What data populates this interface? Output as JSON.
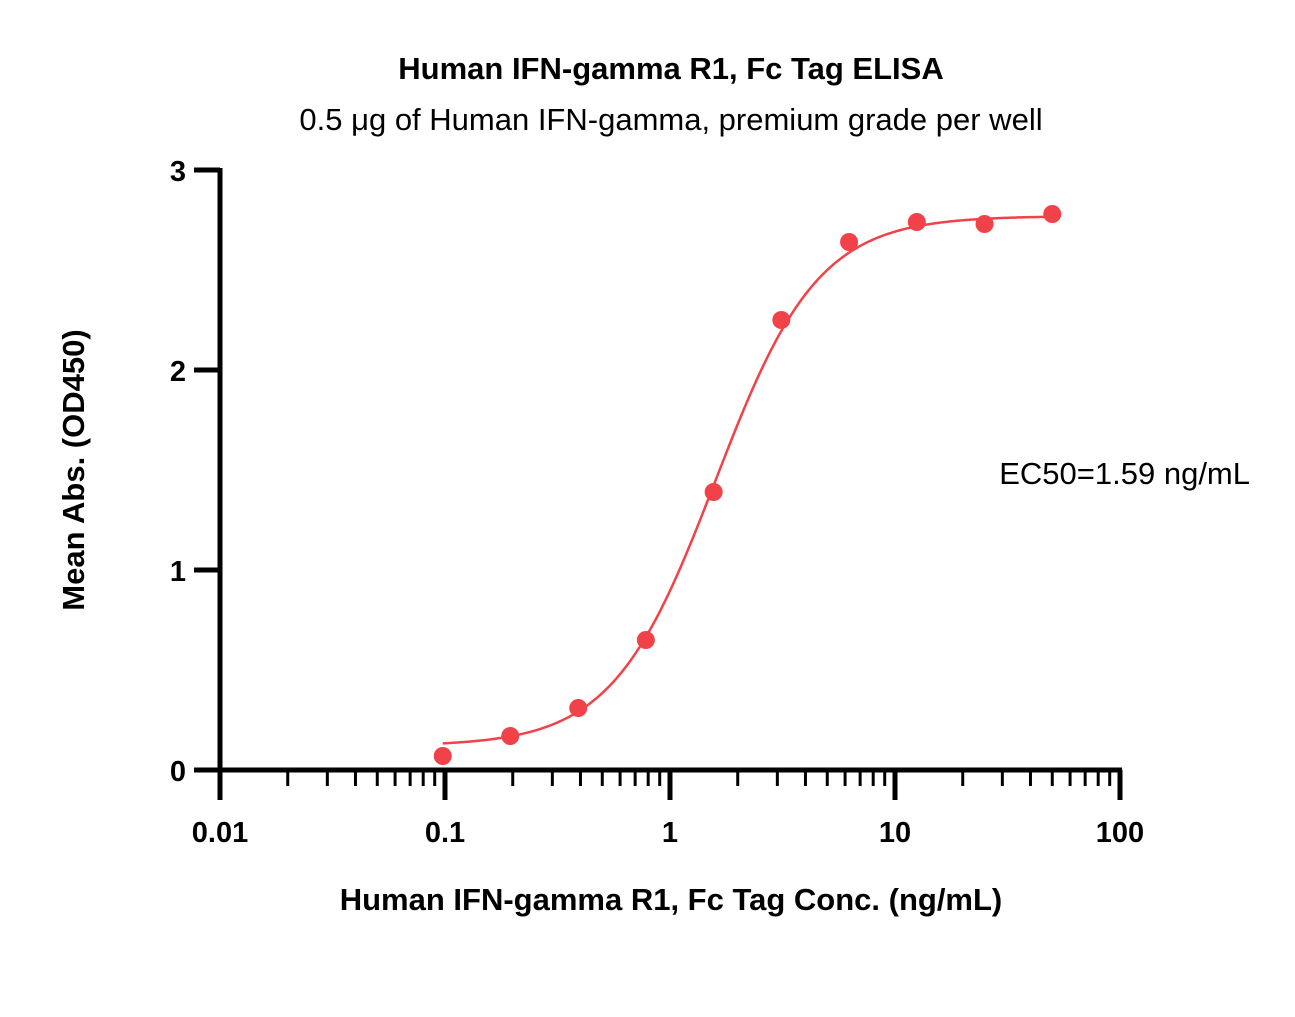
{
  "chart_data": {
    "type": "scatter",
    "title": "Human IFN-gamma R1, Fc Tag ELISA",
    "subtitle": "0.5 μg of Human IFN-gamma, premium grade per well",
    "xlabel": "Human IFN-gamma R1, Fc Tag Conc. (ng/mL)",
    "ylabel": "Mean Abs. (OD450)",
    "x_scale": "log",
    "xlim": [
      0.01,
      100
    ],
    "ylim": [
      0,
      3
    ],
    "x_ticks": [
      0.01,
      0.1,
      1,
      10,
      100
    ],
    "x_tick_labels": [
      "0.01",
      "0.1",
      "1",
      "10",
      "100"
    ],
    "y_ticks": [
      0,
      1,
      2,
      3
    ],
    "y_tick_labels": [
      "0",
      "1",
      "2",
      "3"
    ],
    "grid": false,
    "color": "#f04248",
    "series": [
      {
        "x": [
          0.0977,
          0.195,
          0.391,
          0.781,
          1.563,
          3.125,
          6.25,
          12.5,
          25,
          50
        ],
        "y": [
          0.07,
          0.17,
          0.31,
          0.65,
          1.39,
          2.25,
          2.64,
          2.74,
          2.73,
          2.78
        ]
      }
    ],
    "fit": {
      "model": "4PL",
      "bottom": 0.12,
      "top": 2.77,
      "ec50": 1.59,
      "hill": 1.9,
      "x_range": [
        0.0977,
        50
      ]
    },
    "annotation": "EC50=1.59 ng/mL"
  }
}
